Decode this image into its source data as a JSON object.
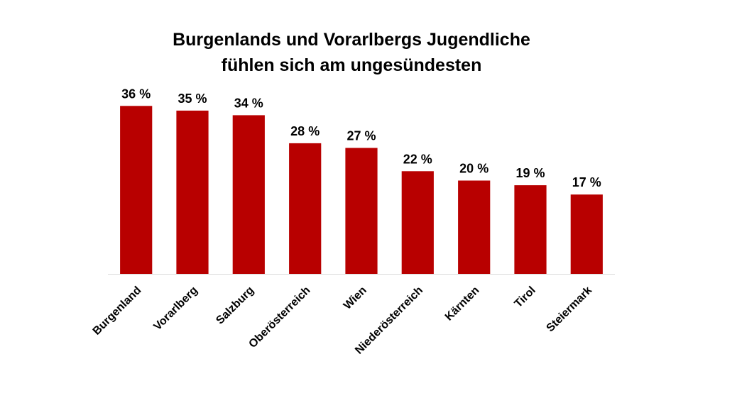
{
  "chart_data": {
    "type": "bar",
    "title_line1": "Burgenlands und Vorarlbergs Jugendliche",
    "title_line2": "fühlen sich am ungesündesten",
    "categories": [
      "Burgenland",
      "Vorarlberg",
      "Salzburg",
      "Oberösterreich",
      "Wien",
      "Niederösterreich",
      "Kärnten",
      "Tirol",
      "Steiermark"
    ],
    "values": [
      36,
      35,
      34,
      28,
      27,
      22,
      20,
      19,
      17
    ],
    "data_labels": [
      "36 %",
      "35 %",
      "34 %",
      "28 %",
      "27 %",
      "22 %",
      "20 %",
      "19 %",
      "17 %"
    ],
    "xlabel": "",
    "ylabel": "",
    "ylim": [
      0,
      40
    ],
    "grid": false,
    "legend": "none",
    "bar_color": "#B80000",
    "axis_color": "#D9D9D9"
  }
}
